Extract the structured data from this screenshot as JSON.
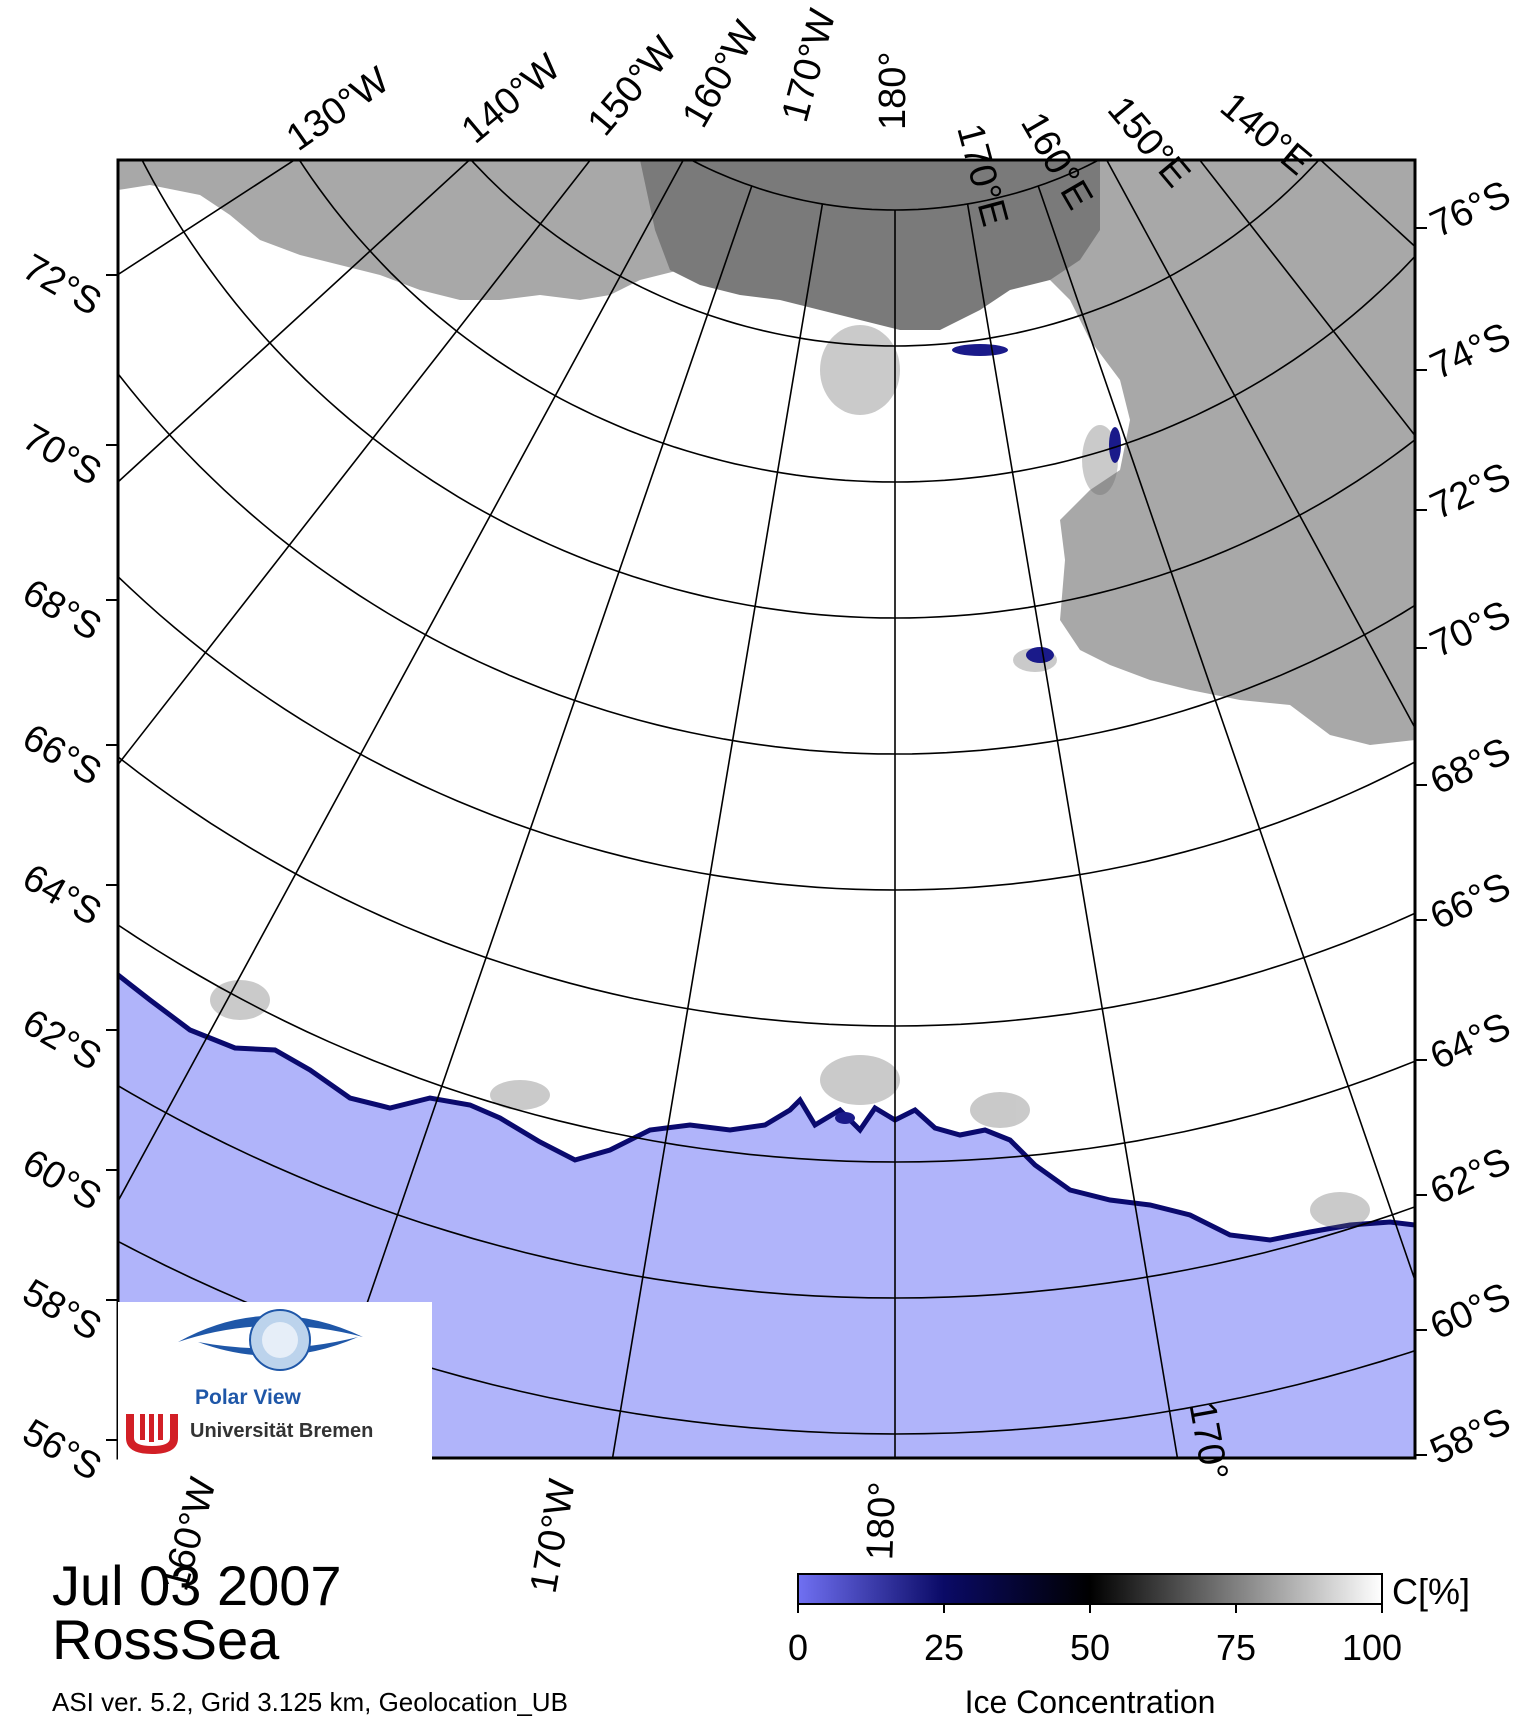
{
  "map": {
    "region": "RossSea",
    "date": "Jul 03 2007",
    "info_line": "ASI ver. 5.2,  Grid 3.125 km, Geolocation_UB",
    "colors": {
      "land": "#a8a8a8",
      "land_shelf": "#7a7a7a",
      "open_water": "#b0b4fa",
      "ice_edge": "#0a0a6e",
      "ice": "#ffffff"
    },
    "top_meridian_labels": [
      "130°W",
      "140°W",
      "150°W",
      "160°W",
      "170°W",
      "180°",
      "170°E",
      "160°E",
      "150°E",
      "140°E"
    ],
    "bottom_meridian_labels": [
      "160°W",
      "170°W",
      "180°",
      "170°"
    ],
    "left_parallel_labels": [
      "72°S",
      "70°S",
      "68°S",
      "66°S",
      "64°S",
      "62°S",
      "60°S",
      "58°S",
      "56°S"
    ],
    "right_parallel_labels": [
      "76°S",
      "74°S",
      "72°S",
      "70°S",
      "68°S",
      "66°S",
      "64°S",
      "62°S",
      "60°S",
      "58°S"
    ]
  },
  "colorbar": {
    "title": "Ice Concentration",
    "unit": "C[%]",
    "ticks": [
      "0",
      "25",
      "50",
      "75",
      "100"
    ],
    "stops": [
      "#7070f2",
      "#0a0a66",
      "#000000",
      "#808080",
      "#ffffff"
    ]
  },
  "logo": {
    "line1": "Polar View",
    "line2": "Universität Bremen"
  }
}
